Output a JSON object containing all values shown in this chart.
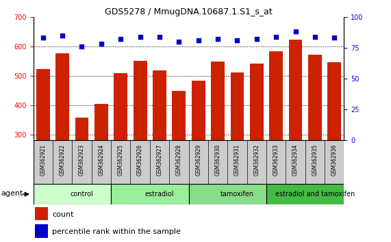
{
  "title": "GDS5278 / MmugDNA.10687.1.S1_s_at",
  "samples": [
    "GSM362921",
    "GSM362922",
    "GSM362923",
    "GSM362924",
    "GSM362925",
    "GSM362926",
    "GSM362927",
    "GSM362928",
    "GSM362929",
    "GSM362930",
    "GSM362931",
    "GSM362932",
    "GSM362933",
    "GSM362934",
    "GSM362935",
    "GSM362936"
  ],
  "counts": [
    522,
    576,
    358,
    403,
    508,
    550,
    517,
    448,
    483,
    549,
    510,
    541,
    584,
    622,
    572,
    547
  ],
  "percentile_ranks": [
    83,
    85,
    76,
    78,
    82,
    84,
    84,
    80,
    81,
    82,
    81,
    82,
    84,
    88,
    84,
    83
  ],
  "bar_color": "#cc2200",
  "dot_color": "#0000cc",
  "ylim_left": [
    280,
    700
  ],
  "ylim_right": [
    0,
    100
  ],
  "yticks_left": [
    300,
    400,
    500,
    600,
    700
  ],
  "yticks_right": [
    0,
    25,
    50,
    75,
    100
  ],
  "grid_values": [
    300,
    400,
    500,
    600
  ],
  "groups": [
    {
      "label": "control",
      "start": 0,
      "end": 4,
      "color": "#ccffcc"
    },
    {
      "label": "estradiol",
      "start": 4,
      "end": 8,
      "color": "#99ee99"
    },
    {
      "label": "tamoxifen",
      "start": 8,
      "end": 12,
      "color": "#88dd88"
    },
    {
      "label": "estradiol and tamoxifen",
      "start": 12,
      "end": 16,
      "color": "#44bb44"
    }
  ],
  "agent_label": "agent",
  "legend_count_label": "count",
  "legend_percentile_label": "percentile rank within the sample",
  "background_color": "#ffffff",
  "tick_area_color": "#cccccc"
}
